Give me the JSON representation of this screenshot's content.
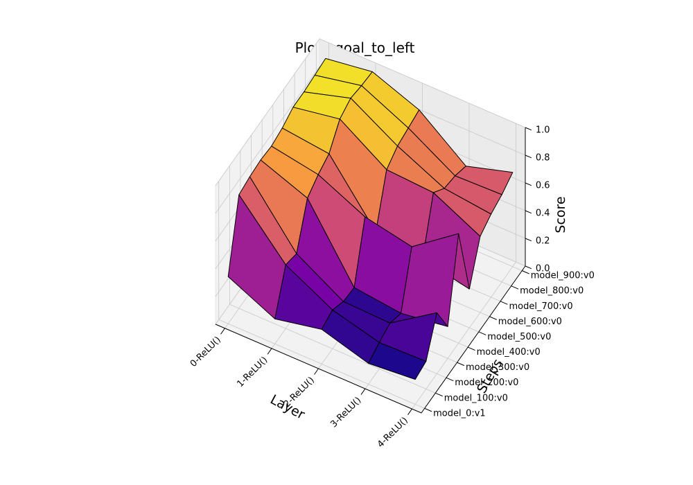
{
  "chart_data": {
    "type": "surface3d",
    "title": "Plot - goal_to_left",
    "xlabel": "Layer",
    "ylabel": "Steps",
    "zlabel": "Score",
    "x_categories": [
      "0-ReLU()",
      "1-ReLU()",
      "2-ReLU()",
      "3-ReLU()",
      "4-ReLU()"
    ],
    "y_categories": [
      "model_0:v1",
      "model_100:v0",
      "model_200:v0",
      "model_300:v0",
      "model_400:v0",
      "model_500:v0",
      "model_600:v0",
      "model_700:v0",
      "model_800:v0",
      "model_900:v0"
    ],
    "z_ticks": [
      "0.0",
      "0.2",
      "0.4",
      "0.6",
      "0.8",
      "1.0"
    ],
    "zlim": [
      0,
      1
    ],
    "colormap": "plasma",
    "grid": true,
    "z": [
      [
        0.34,
        0.82,
        0.84,
        0.85,
        0.84,
        0.86,
        0.9,
        0.9,
        0.91,
        0.92
      ],
      [
        0.18,
        0.46,
        0.43,
        0.72,
        0.78,
        0.82,
        0.96,
        1.0,
        0.98,
        0.97
      ],
      [
        0.25,
        0.28,
        0.23,
        0.22,
        0.62,
        0.4,
        0.74,
        0.8,
        0.82,
        0.84
      ],
      [
        0.15,
        0.19,
        0.22,
        0.18,
        0.55,
        0.35,
        0.72,
        0.64,
        0.62,
        0.58
      ],
      [
        0.18,
        0.2,
        0.44,
        0.23,
        0.79,
        0.28,
        0.55,
        0.6,
        0.63,
        0.68
      ]
    ]
  }
}
